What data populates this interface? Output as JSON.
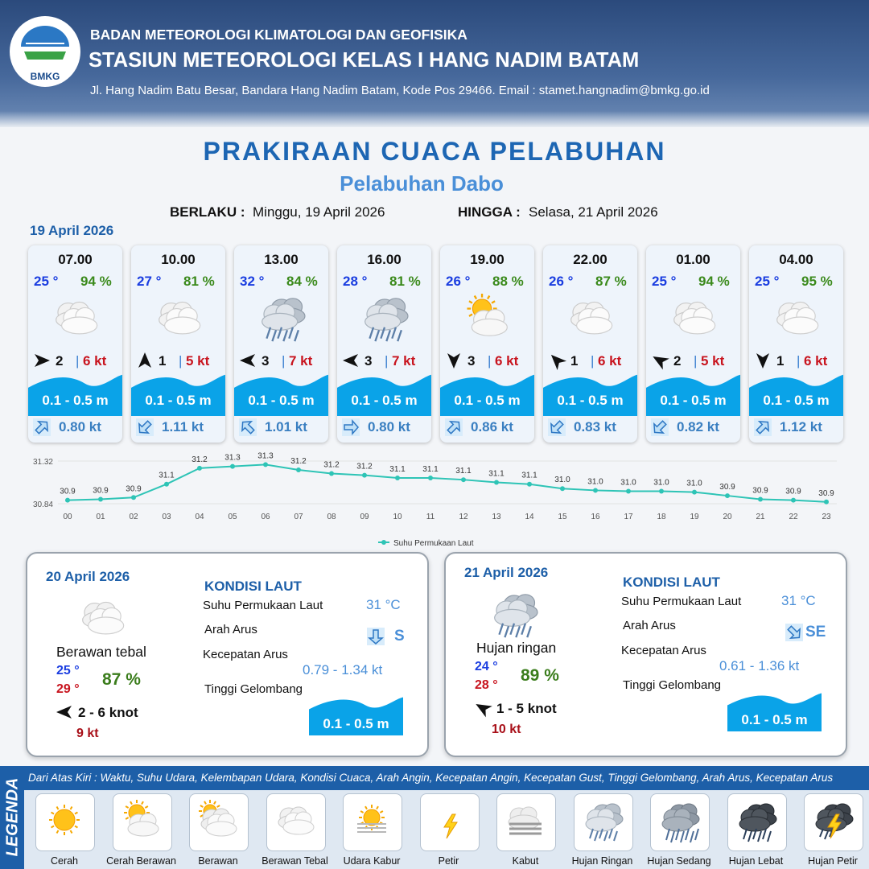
{
  "header": {
    "logo_text": "BMKG",
    "organization": "BADAN METEOROLOGI KLIMATOLOGI DAN GEOFISIKA",
    "station": "STASIUN METEOROLOGI KELAS I HANG NADIM BATAM",
    "address": "Jl. Hang Nadim Batu Besar, Bandara Hang Nadim Batam, Kode Pos 29466. Email : stamet.hangnadim@bmkg.go.id"
  },
  "title": "PRAKIRAAN CUACA PELABUHAN",
  "subtitle": "Pelabuhan Dabo",
  "validity": {
    "from_label": "BERLAKU :",
    "from": "Minggu, 19 April 2026",
    "to_label": "HINGGA :",
    "to": "Selasa, 21 April 2026"
  },
  "day1": {
    "date": "19 April 2026",
    "slots": [
      {
        "time": "07.00",
        "temp": "25 °",
        "humidity": "94 %",
        "wind": "2",
        "gust": "6 kt",
        "wave": "0.1 - 0.5 m",
        "current": "0.80 kt"
      },
      {
        "time": "10.00",
        "temp": "27 °",
        "humidity": "81 %",
        "wind": "1",
        "gust": "5 kt",
        "wave": "0.1 - 0.5 m",
        "current": "1.11 kt"
      },
      {
        "time": "13.00",
        "temp": "32 °",
        "humidity": "84 %",
        "wind": "3",
        "gust": "7 kt",
        "wave": "0.1 - 0.5 m",
        "current": "1.01 kt"
      },
      {
        "time": "16.00",
        "temp": "28 °",
        "humidity": "81 %",
        "wind": "3",
        "gust": "7 kt",
        "wave": "0.1 - 0.5 m",
        "current": "0.80 kt"
      },
      {
        "time": "19.00",
        "temp": "26 °",
        "humidity": "88 %",
        "wind": "3",
        "gust": "6 kt",
        "wave": "0.1 - 0.5 m",
        "current": "0.86 kt"
      },
      {
        "time": "22.00",
        "temp": "26 °",
        "humidity": "87 %",
        "wind": "1",
        "gust": "6 kt",
        "wave": "0.1 - 0.5 m",
        "current": "0.83 kt"
      },
      {
        "time": "01.00",
        "temp": "25 °",
        "humidity": "94 %",
        "wind": "2",
        "gust": "5 kt",
        "wave": "0.1 - 0.5 m",
        "current": "0.82 kt"
      },
      {
        "time": "04.00",
        "temp": "25 °",
        "humidity": "95 %",
        "wind": "1",
        "gust": "6 kt",
        "wave": "0.1 - 0.5 m",
        "current": "1.12 kt"
      }
    ]
  },
  "chart_data": {
    "type": "line",
    "categories": [
      "00",
      "01",
      "02",
      "03",
      "04",
      "05",
      "06",
      "07",
      "08",
      "09",
      "10",
      "11",
      "12",
      "13",
      "14",
      "15",
      "16",
      "17",
      "18",
      "19",
      "20",
      "21",
      "22",
      "23"
    ],
    "series": [
      {
        "name": "Suhu Permukaan Laut",
        "color": "#2ec4b6",
        "values": [
          30.88,
          30.89,
          30.91,
          31.06,
          31.24,
          31.26,
          31.28,
          31.22,
          31.18,
          31.16,
          31.13,
          31.13,
          31.11,
          31.08,
          31.06,
          31.01,
          30.99,
          30.98,
          30.98,
          30.97,
          30.93,
          30.89,
          30.88,
          30.86
        ],
        "value_labels": [
          "30.9",
          "30.9",
          "30.9",
          "31.1",
          "31.2",
          "31.3",
          "31.3",
          "31.2",
          "31.2",
          "31.2",
          "31.1",
          "31.1",
          "31.1",
          "31.1",
          "31.1",
          "31.0",
          "31.0",
          "31.0",
          "31.0",
          "31.0",
          "30.9",
          "30.9",
          "30.9",
          "30.9"
        ]
      }
    ],
    "ylim": [
      30.84,
      31.32
    ],
    "yticks": [
      30.84,
      31.32
    ],
    "grid": true,
    "legend": "bottom"
  },
  "days": [
    {
      "date": "20 April 2026",
      "weather": "Berawan tebal",
      "temp_min": "25 °",
      "temp_max": "29 °",
      "humidity": "87 %",
      "wind": "2  - 6 knot",
      "gust": "9 kt",
      "sea_heading": "KONDISI LAUT",
      "sst_label": "Suhu Permukaan Laut",
      "sst": "31 °C",
      "current_dir_label": "Arah Arus",
      "current_dir": "S",
      "current_speed_label": "Kecepatan Arus",
      "current_speed": "0.79  - 1.34 kt",
      "wave_label": "Tinggi Gelombang",
      "wave": "0.1 - 0.5 m"
    },
    {
      "date": "21 April 2026",
      "weather": "Hujan ringan",
      "temp_min": "24 °",
      "temp_max": "28 °",
      "humidity": "89 %",
      "wind": "1  - 5 knot",
      "gust": "10 kt",
      "sea_heading": "KONDISI LAUT",
      "sst_label": "Suhu Permukaan Laut",
      "sst": "31 °C",
      "current_dir_label": "Arah Arus",
      "current_dir": "SE",
      "current_speed_label": "Kecepatan Arus",
      "current_speed": "0.61  - 1.36 kt",
      "wave_label": "Tinggi Gelombang",
      "wave": "0.1 - 0.5 m"
    }
  ],
  "legend": {
    "label": "LEGENDA",
    "description": "Dari Atas Kiri : Waktu, Suhu Udara, Kelembapan Udara, Kondisi Cuaca, Arah Angin, Kecepatan Angin, Kecepatan Gust, Tinggi Gelombang, Arah Arus, Kecepatan Arus",
    "items": [
      "Cerah",
      "Cerah Berawan",
      "Berawan",
      "Berawan Tebal",
      "Udara Kabur",
      "Petir",
      "Kabut",
      "Hujan Ringan",
      "Hujan Sedang",
      "Hujan Lebat",
      "Hujan Petir"
    ]
  }
}
